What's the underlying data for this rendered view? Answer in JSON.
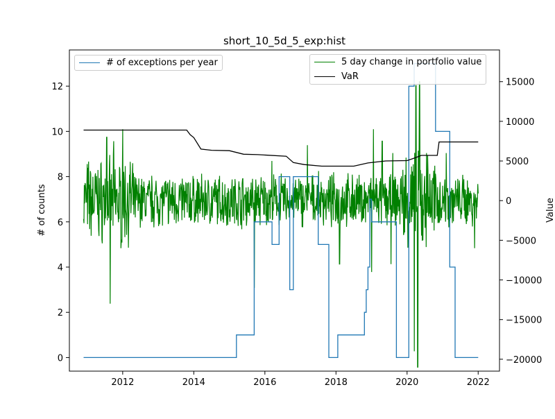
{
  "chart_data": {
    "type": "line",
    "title": "short_10_5d_5_exp:hist",
    "xlabel": "",
    "x_ticks": [
      "2012",
      "2014",
      "2016",
      "2018",
      "2020",
      "2022"
    ],
    "x_range": [
      2010.5,
      2022.6
    ],
    "left_axis": {
      "label": "# of counts",
      "ylim": [
        -0.6,
        13.6
      ],
      "ticks": [
        0,
        2,
        4,
        6,
        8,
        10,
        12
      ]
    },
    "right_axis": {
      "label": "Value",
      "ylim": [
        -21500,
        19000
      ],
      "ticks": [
        -20000,
        -15000,
        -10000,
        -5000,
        0,
        5000,
        10000,
        15000
      ]
    },
    "legend_left": {
      "placement": "upper left",
      "entries": [
        "# of exceptions per year"
      ]
    },
    "legend_right": {
      "placement": "upper right",
      "entries": [
        "5 day change in portfolio value",
        "VaR"
      ]
    },
    "series": [
      {
        "name": "# of exceptions per year",
        "axis": "left",
        "color": "#1f77b4",
        "step": true,
        "x": [
          2010.9,
          2015.2,
          2015.2,
          2015.7,
          2015.7,
          2016.2,
          2016.2,
          2016.4,
          2016.4,
          2016.7,
          2016.7,
          2016.8,
          2016.8,
          2017.5,
          2017.5,
          2017.8,
          2017.8,
          2018.05,
          2018.05,
          2018.8,
          2018.8,
          2018.85,
          2018.85,
          2018.9,
          2018.9,
          2018.95,
          2018.95,
          2019.0,
          2019.0,
          2019.7,
          2019.7,
          2020.05,
          2020.05,
          2020.2,
          2020.2,
          2020.8,
          2020.8,
          2021.2,
          2021.2,
          2021.35,
          2021.35,
          2021.8,
          2021.8,
          2022.0
        ],
        "values": [
          0,
          0,
          1,
          1,
          6,
          6,
          5,
          5,
          8,
          8,
          3,
          3,
          8,
          8,
          5,
          5,
          0,
          0,
          1,
          1,
          2,
          2,
          3,
          3,
          4,
          4,
          7,
          7,
          6,
          6,
          0,
          0,
          12,
          12,
          13,
          13,
          10,
          10,
          4,
          4,
          0,
          0,
          0,
          0
        ]
      },
      {
        "name": "VaR",
        "axis": "right",
        "color": "#000000",
        "x": [
          2010.9,
          2013.8,
          2013.9,
          2014.0,
          2014.2,
          2014.5,
          2015.0,
          2015.4,
          2015.8,
          2016.6,
          2016.8,
          2017.1,
          2017.6,
          2018.5,
          2018.9,
          2019.4,
          2020.0,
          2020.2,
          2020.4,
          2020.85,
          2020.9,
          2022.0
        ],
        "values": [
          8900,
          8900,
          8300,
          7950,
          6500,
          6350,
          6300,
          5850,
          5800,
          5600,
          4800,
          4550,
          4350,
          4350,
          4750,
          5000,
          5050,
          5350,
          5700,
          5700,
          7400,
          7400
        ]
      },
      {
        "name": "5 day change in portfolio value",
        "axis": "right",
        "color": "#008000",
        "noise_seed": 7,
        "noise_amplitude": 2500,
        "spikes": [
          {
            "x": 2011.65,
            "y": -13000
          },
          {
            "x": 2011.75,
            "y": 7500
          },
          {
            "x": 2011.95,
            "y": -6000
          },
          {
            "x": 2011.55,
            "y": 8000
          },
          {
            "x": 2012.0,
            "y": 9000
          },
          {
            "x": 2015.7,
            "y": -11000
          },
          {
            "x": 2016.2,
            "y": 5000
          },
          {
            "x": 2017.2,
            "y": 7000
          },
          {
            "x": 2018.1,
            "y": -8000
          },
          {
            "x": 2019.0,
            "y": -9000
          },
          {
            "x": 2019.05,
            "y": 9000
          },
          {
            "x": 2019.3,
            "y": 7500
          },
          {
            "x": 2019.55,
            "y": -8000
          },
          {
            "x": 2019.6,
            "y": 6000
          },
          {
            "x": 2020.2,
            "y": -19000
          },
          {
            "x": 2020.25,
            "y": 14500
          },
          {
            "x": 2020.3,
            "y": -21000
          },
          {
            "x": 2020.35,
            "y": 15000
          },
          {
            "x": 2020.45,
            "y": -5000
          },
          {
            "x": 2020.55,
            "y": 6000
          },
          {
            "x": 2021.1,
            "y": 6000
          },
          {
            "x": 2021.9,
            "y": -6000
          }
        ]
      }
    ]
  }
}
